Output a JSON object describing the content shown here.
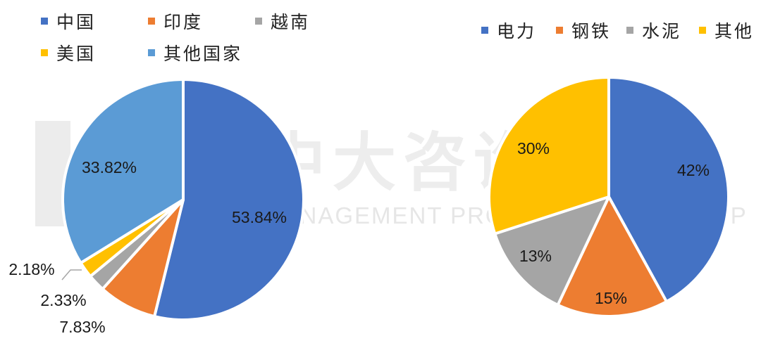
{
  "watermark": {
    "logo_text": "MP",
    "cn_text": "中大咨询集团",
    "en_text": "MANAGEMENT PROFESSIONAL GROUP"
  },
  "chart_data": [
    {
      "type": "pie",
      "legend_position": "top",
      "series": [
        {
          "name": "中国",
          "value": 53.84,
          "label": "53.84%",
          "color": "#4472C4"
        },
        {
          "name": "印度",
          "value": 7.83,
          "label": "7.83%",
          "color": "#ED7D31"
        },
        {
          "name": "越南",
          "value": 2.33,
          "label": "2.33%",
          "color": "#A5A5A5"
        },
        {
          "name": "美国",
          "value": 2.18,
          "label": "2.18%",
          "color": "#FFC000"
        },
        {
          "name": "其他国家",
          "value": 33.82,
          "label": "33.82%",
          "color": "#5B9BD5"
        }
      ]
    },
    {
      "type": "pie",
      "legend_position": "top",
      "series": [
        {
          "name": "电力",
          "value": 42,
          "label": "42%",
          "color": "#4472C4"
        },
        {
          "name": "钢铁",
          "value": 15,
          "label": "15%",
          "color": "#ED7D31"
        },
        {
          "name": "水泥",
          "value": 13,
          "label": "13%",
          "color": "#A5A5A5"
        },
        {
          "name": "其他",
          "value": 30,
          "label": "30%",
          "color": "#FFC000"
        }
      ]
    }
  ]
}
